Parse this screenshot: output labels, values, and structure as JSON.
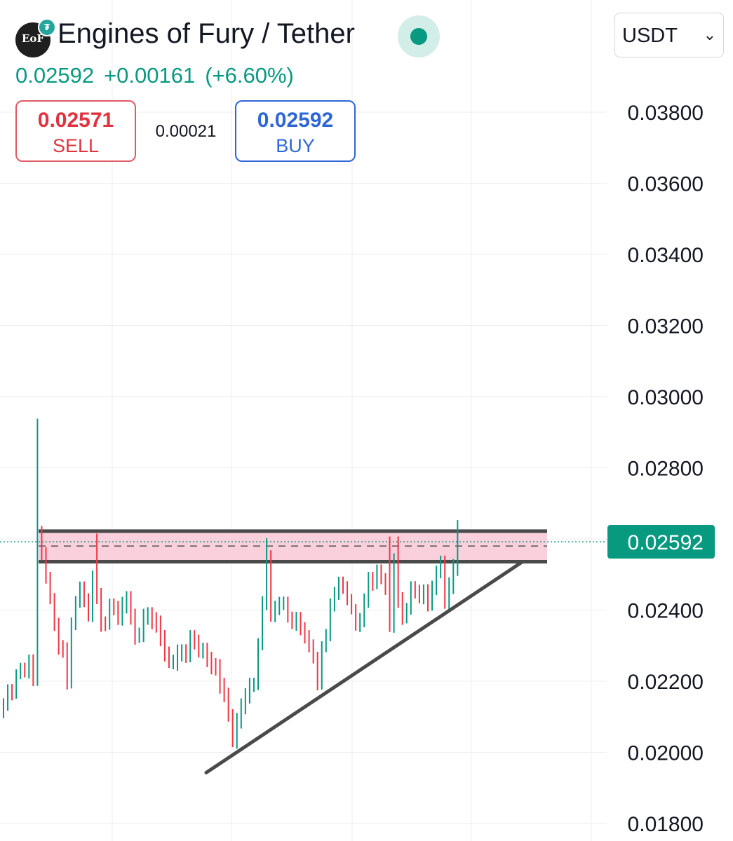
{
  "header": {
    "logo_text": "EoF",
    "title": "Engines of Fury / Tether",
    "last_price": "0.02592",
    "change_abs": "+0.00161",
    "change_pct": "(+6.60%)",
    "status": "market-open"
  },
  "trade": {
    "sell_price": "0.02571",
    "sell_label": "SELL",
    "spread": "0.00021",
    "buy_price": "0.02592",
    "buy_label": "BUY"
  },
  "currency_select": {
    "value": "USDT",
    "icon": "chevron-down-icon"
  },
  "colors": {
    "up": "#089981",
    "down": "#f23645",
    "sell": "#e0333f",
    "buy": "#2f66d6",
    "zone_fill": "#f9d0dc",
    "zone_line": "#4a4a4a",
    "grid": "#eeeeee"
  },
  "chart_data": {
    "type": "candlestick",
    "ylim": [
      0.0175,
      0.039
    ],
    "y_ticks": [
      "0.03800",
      "0.03600",
      "0.03400",
      "0.03200",
      "0.03000",
      "0.02800",
      "0.02400",
      "0.02200",
      "0.02000",
      "0.01800"
    ],
    "current_price_label": "0.02592",
    "current_price": 0.02592,
    "candle_count": 108,
    "candle_waypoints": [
      [
        0,
        0.0214
      ],
      [
        3,
        0.0222
      ],
      [
        5,
        0.0223
      ],
      [
        6,
        0.0226
      ],
      [
        7,
        0.0221
      ],
      [
        8,
        0.0262
      ],
      [
        9,
        0.0256
      ],
      [
        10,
        0.0249
      ],
      [
        11,
        0.0243
      ],
      [
        12,
        0.0236
      ],
      [
        14,
        0.0229
      ],
      [
        15,
        0.022
      ],
      [
        16,
        0.0236
      ],
      [
        18,
        0.0246
      ],
      [
        20,
        0.0239
      ],
      [
        21,
        0.0249
      ],
      [
        23,
        0.0236
      ],
      [
        25,
        0.0241
      ],
      [
        27,
        0.0238
      ],
      [
        29,
        0.0243
      ],
      [
        31,
        0.0232
      ],
      [
        33,
        0.0238
      ],
      [
        35,
        0.0237
      ],
      [
        37,
        0.0232
      ],
      [
        39,
        0.0225
      ],
      [
        42,
        0.0228
      ],
      [
        44,
        0.0232
      ],
      [
        46,
        0.0228
      ],
      [
        48,
        0.0226
      ],
      [
        50,
        0.0224
      ],
      [
        52,
        0.0216
      ],
      [
        54,
        0.0203
      ],
      [
        55,
        0.0209
      ],
      [
        57,
        0.0216
      ],
      [
        59,
        0.0219
      ],
      [
        61,
        0.0242
      ],
      [
        62,
        0.0255
      ],
      [
        63,
        0.0239
      ],
      [
        65,
        0.0242
      ],
      [
        67,
        0.0238
      ],
      [
        69,
        0.0238
      ],
      [
        71,
        0.0233
      ],
      [
        73,
        0.0227
      ],
      [
        74,
        0.0219
      ],
      [
        75,
        0.023
      ],
      [
        77,
        0.0242
      ],
      [
        79,
        0.0248
      ],
      [
        81,
        0.0243
      ],
      [
        83,
        0.0236
      ],
      [
        85,
        0.0243
      ],
      [
        86,
        0.0249
      ],
      [
        88,
        0.0251
      ],
      [
        90,
        0.0246
      ],
      [
        91,
        0.0236
      ],
      [
        92,
        0.0254
      ],
      [
        93,
        0.0243
      ],
      [
        94,
        0.0238
      ],
      [
        96,
        0.0246
      ],
      [
        98,
        0.0244
      ],
      [
        100,
        0.0242
      ],
      [
        101,
        0.0246
      ],
      [
        103,
        0.0253
      ],
      [
        104,
        0.0242
      ],
      [
        106,
        0.0252
      ],
      [
        107,
        0.02592
      ]
    ],
    "spikes": [
      {
        "index": 8,
        "high": 0.02938
      },
      {
        "index": 22,
        "high": 0.02615
      },
      {
        "index": 62,
        "high": 0.02602
      },
      {
        "index": 91,
        "high": 0.02607
      },
      {
        "index": 93,
        "high": 0.02607
      },
      {
        "index": 107,
        "high": 0.02653
      }
    ],
    "resistance_zone": {
      "top": 0.02622,
      "bottom": 0.02536,
      "dashed": 0.0258,
      "dotted": 0.02592
    },
    "trendline": {
      "start_price": 0.01943,
      "end_price": 0.02536
    }
  }
}
